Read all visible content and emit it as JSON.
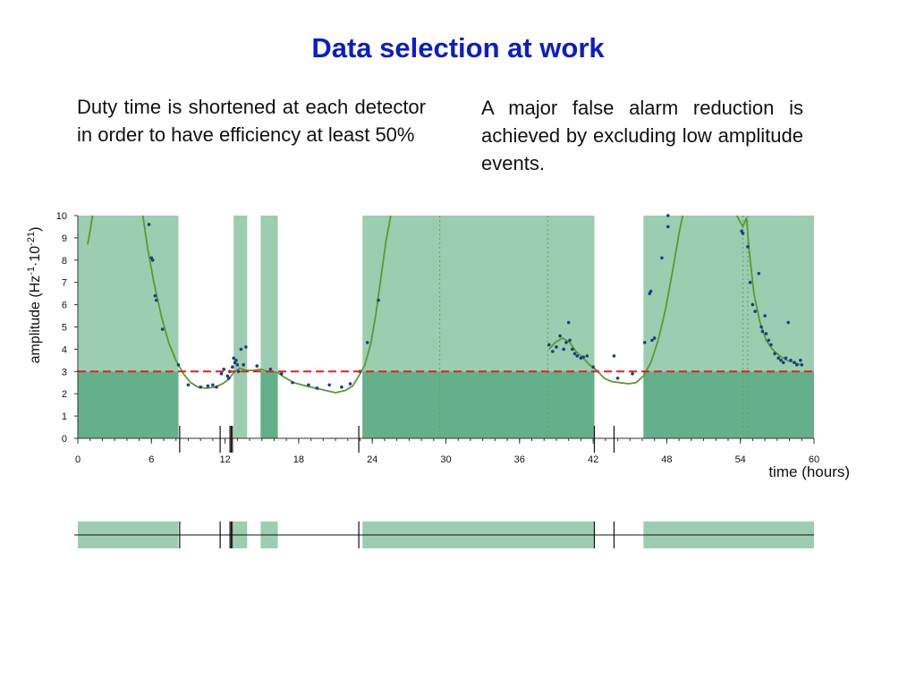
{
  "title": "Data selection at work",
  "paragraphs": {
    "left": "Duty time is shortened at each detector in order to have efficiency at least 50%",
    "right": "A major false alarm reduction is achieved by excluding low amplitude events."
  },
  "colors": {
    "title": "#0b1fbf",
    "duty_band": "#9ccdb1",
    "duty_band_selected": "#64b08a",
    "curve": "#5a9a2e",
    "points": "#1f3c88",
    "threshold": "#dd2020"
  },
  "chart_data": {
    "type": "scatter",
    "title": "",
    "xlabel": "time (hours)",
    "ylabel_parts": {
      "a": "amplitude (Hz",
      "s1": "-1",
      "b": "·10",
      "s2": "-21",
      "c": ")"
    },
    "xlim": [
      0,
      60
    ],
    "ylim": [
      0,
      10
    ],
    "xticks": [
      0,
      6,
      12,
      18,
      24,
      30,
      36,
      42,
      48,
      54,
      60
    ],
    "yticks": [
      0,
      1,
      2,
      3,
      4,
      5,
      6,
      7,
      8,
      9,
      10
    ],
    "grid": false,
    "threshold": 3,
    "duty_intervals": [
      [
        0,
        8.2
      ],
      [
        12.7,
        13.8
      ],
      [
        14.9,
        16.3
      ],
      [
        23.2,
        42.1
      ],
      [
        46.1,
        60
      ]
    ],
    "selected_intervals": [
      [
        0,
        8.2
      ],
      [
        14.9,
        16.3
      ],
      [
        23.2,
        42.1
      ],
      [
        46.1,
        60
      ]
    ],
    "vertical_dotted_lines": [
      29.5,
      38.3,
      54.2,
      54.6
    ],
    "event_markers": [
      8.3,
      11.6,
      12.4,
      12.5,
      12.6,
      22.9,
      42.1,
      43.7
    ],
    "bottom_strip_markers": [
      8.3,
      11.6,
      12.4,
      12.5,
      12.6,
      22.9,
      42.1,
      43.7
    ],
    "curve_segments": [
      [
        [
          0.8,
          8.7
        ],
        [
          1.0,
          9.3
        ],
        [
          1.2,
          10
        ]
      ],
      [
        [
          5.3,
          10
        ],
        [
          5.7,
          8.5
        ],
        [
          6.2,
          7.0
        ],
        [
          6.8,
          5.5
        ],
        [
          7.4,
          4.3
        ],
        [
          8.0,
          3.5
        ],
        [
          8.6,
          2.9
        ],
        [
          9.2,
          2.5
        ],
        [
          9.8,
          2.3
        ],
        [
          10.5,
          2.25
        ],
        [
          11.2,
          2.3
        ],
        [
          11.8,
          2.45
        ],
        [
          12.3,
          2.65
        ],
        [
          12.7,
          2.95
        ],
        [
          13.2,
          3.15
        ],
        [
          13.7,
          3.05
        ],
        [
          14.3,
          3.05
        ],
        [
          14.9,
          3.1
        ],
        [
          15.5,
          3.0
        ],
        [
          16.3,
          2.95
        ],
        [
          16.8,
          2.75
        ],
        [
          17.6,
          2.5
        ],
        [
          18.6,
          2.35
        ],
        [
          19.4,
          2.25
        ],
        [
          20.2,
          2.15
        ],
        [
          21.0,
          2.05
        ],
        [
          21.8,
          2.15
        ],
        [
          22.4,
          2.35
        ],
        [
          22.9,
          2.8
        ],
        [
          23.4,
          3.3
        ],
        [
          23.9,
          4.3
        ],
        [
          24.3,
          5.6
        ],
        [
          24.7,
          7.2
        ],
        [
          25.1,
          8.8
        ],
        [
          25.5,
          10
        ]
      ],
      [
        [
          38.4,
          4.0
        ],
        [
          38.9,
          4.3
        ],
        [
          39.5,
          4.5
        ],
        [
          40.1,
          4.3
        ],
        [
          40.6,
          3.9
        ],
        [
          41.2,
          3.6
        ],
        [
          41.7,
          3.3
        ],
        [
          42.3,
          3.05
        ],
        [
          42.9,
          2.7
        ],
        [
          43.5,
          2.55
        ],
        [
          44.2,
          2.5
        ],
        [
          44.9,
          2.45
        ],
        [
          45.5,
          2.5
        ],
        [
          46.1,
          2.8
        ],
        [
          46.7,
          3.4
        ],
        [
          47.3,
          4.4
        ],
        [
          47.9,
          5.8
        ],
        [
          48.5,
          7.6
        ],
        [
          49.0,
          9.2
        ],
        [
          49.3,
          10
        ]
      ],
      [
        [
          53.7,
          10
        ],
        [
          54.2,
          9.5
        ],
        [
          54.5,
          9.9
        ],
        [
          54.7,
          8.5
        ],
        [
          55.1,
          6.5
        ],
        [
          55.6,
          5.2
        ],
        [
          56.1,
          4.4
        ],
        [
          56.6,
          4.0
        ],
        [
          57.2,
          3.7
        ],
        [
          57.8,
          3.5
        ],
        [
          58.4,
          3.4
        ],
        [
          58.9,
          3.3
        ]
      ]
    ],
    "points": [
      [
        5.8,
        9.6
      ],
      [
        6.0,
        8.1
      ],
      [
        6.1,
        8.0
      ],
      [
        6.3,
        6.4
      ],
      [
        6.4,
        6.2
      ],
      [
        6.9,
        4.9
      ],
      [
        8.2,
        3.3
      ],
      [
        9.0,
        2.4
      ],
      [
        10.0,
        2.3
      ],
      [
        10.6,
        2.35
      ],
      [
        11.0,
        2.4
      ],
      [
        11.3,
        2.3
      ],
      [
        11.7,
        2.9
      ],
      [
        11.9,
        3.1
      ],
      [
        12.2,
        2.8
      ],
      [
        12.3,
        2.7
      ],
      [
        12.4,
        3.0
      ],
      [
        12.6,
        3.2
      ],
      [
        12.7,
        3.6
      ],
      [
        12.8,
        3.4
      ],
      [
        12.9,
        3.5
      ],
      [
        13.0,
        3.3
      ],
      [
        13.1,
        3.0
      ],
      [
        13.3,
        4.0
      ],
      [
        13.5,
        3.3
      ],
      [
        13.7,
        4.1
      ],
      [
        14.6,
        3.25
      ],
      [
        15.7,
        3.1
      ],
      [
        16.6,
        2.9
      ],
      [
        17.5,
        2.5
      ],
      [
        18.8,
        2.4
      ],
      [
        19.5,
        2.25
      ],
      [
        20.5,
        2.4
      ],
      [
        21.5,
        2.3
      ],
      [
        22.2,
        2.45
      ],
      [
        23.0,
        3.0
      ],
      [
        23.6,
        4.3
      ],
      [
        24.5,
        6.2
      ],
      [
        38.4,
        4.2
      ],
      [
        38.7,
        3.9
      ],
      [
        39.0,
        4.1
      ],
      [
        39.3,
        4.6
      ],
      [
        39.6,
        4.0
      ],
      [
        39.8,
        4.3
      ],
      [
        40.0,
        5.2
      ],
      [
        40.1,
        4.4
      ],
      [
        40.3,
        4.0
      ],
      [
        40.5,
        3.8
      ],
      [
        40.7,
        3.7
      ],
      [
        41.0,
        3.6
      ],
      [
        41.2,
        3.65
      ],
      [
        41.5,
        3.7
      ],
      [
        42.0,
        3.2
      ],
      [
        43.7,
        3.7
      ],
      [
        44.0,
        2.7
      ],
      [
        45.2,
        2.9
      ],
      [
        46.2,
        4.3
      ],
      [
        46.6,
        6.5
      ],
      [
        46.7,
        6.6
      ],
      [
        46.8,
        4.4
      ],
      [
        47.0,
        4.5
      ],
      [
        47.6,
        8.1
      ],
      [
        48.1,
        9.5
      ],
      [
        48.1,
        10.0
      ],
      [
        54.1,
        9.3
      ],
      [
        54.2,
        9.2
      ],
      [
        54.6,
        8.6
      ],
      [
        54.8,
        7.0
      ],
      [
        55.0,
        6.0
      ],
      [
        55.2,
        5.7
      ],
      [
        55.5,
        7.4
      ],
      [
        55.7,
        5.0
      ],
      [
        55.8,
        4.8
      ],
      [
        56.0,
        5.5
      ],
      [
        56.1,
        4.7
      ],
      [
        56.3,
        4.4
      ],
      [
        56.5,
        4.2
      ],
      [
        56.8,
        3.8
      ],
      [
        57.1,
        3.6
      ],
      [
        57.3,
        3.5
      ],
      [
        57.5,
        3.4
      ],
      [
        57.7,
        3.6
      ],
      [
        57.9,
        5.2
      ],
      [
        58.1,
        3.5
      ],
      [
        58.4,
        3.4
      ],
      [
        58.6,
        3.3
      ],
      [
        58.9,
        3.5
      ],
      [
        59.0,
        3.3
      ]
    ]
  }
}
